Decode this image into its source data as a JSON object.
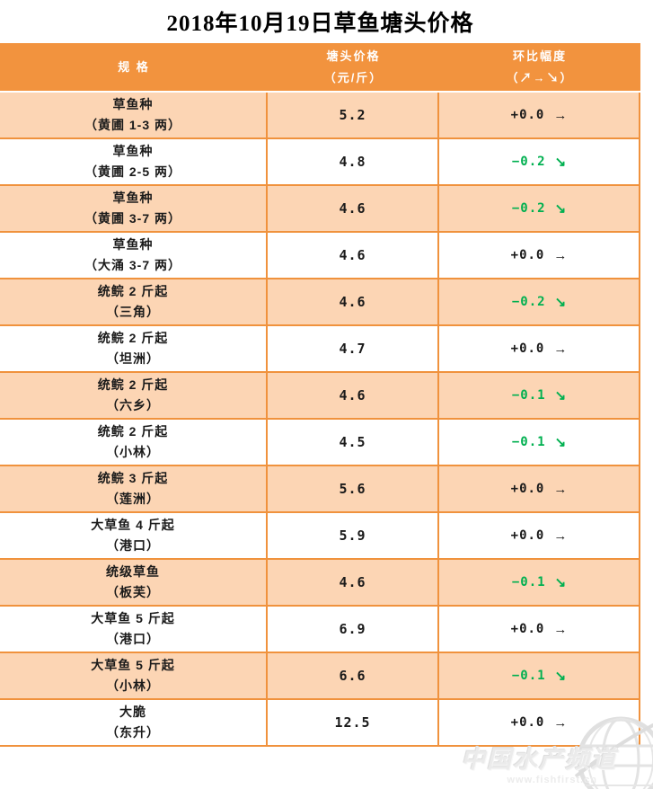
{
  "chart_data": {
    "type": "table",
    "title": "2018年10月19日草鱼塘头价格",
    "columns": [
      {
        "label": "规 格",
        "sub": ""
      },
      {
        "label": "塘头价格",
        "sub": "（元/斤）"
      },
      {
        "label": "环比幅度",
        "sub": "（↗→↘）"
      }
    ],
    "rows": [
      {
        "spec": "草鱼种",
        "detail": "（黄圃 1-3 两）",
        "price": "5.2",
        "change": "+0.0",
        "trend": "→",
        "direction": "flat"
      },
      {
        "spec": "草鱼种",
        "detail": "（黄圃 2-5 两）",
        "price": "4.8",
        "change": "−0.2",
        "trend": "↘",
        "direction": "down"
      },
      {
        "spec": "草鱼种",
        "detail": "（黄圃 3-7 两）",
        "price": "4.6",
        "change": "−0.2",
        "trend": "↘",
        "direction": "down"
      },
      {
        "spec": "草鱼种",
        "detail": "（大涌 3-7 两）",
        "price": "4.6",
        "change": "+0.0",
        "trend": "→",
        "direction": "flat"
      },
      {
        "spec": "统鲩 2 斤起",
        "detail": "（三角）",
        "price": "4.6",
        "change": "−0.2",
        "trend": "↘",
        "direction": "down"
      },
      {
        "spec": "统鲩 2 斤起",
        "detail": "（坦洲）",
        "price": "4.7",
        "change": "+0.0",
        "trend": "→",
        "direction": "flat"
      },
      {
        "spec": "统鲩 2 斤起",
        "detail": "（六乡）",
        "price": "4.6",
        "change": "−0.1",
        "trend": "↘",
        "direction": "down"
      },
      {
        "spec": "统鲩 2 斤起",
        "detail": "（小林）",
        "price": "4.5",
        "change": "−0.1",
        "trend": "↘",
        "direction": "down"
      },
      {
        "spec": "统鲩 3 斤起",
        "detail": "（莲洲）",
        "price": "5.6",
        "change": "+0.0",
        "trend": "→",
        "direction": "flat"
      },
      {
        "spec": "大草鱼 4 斤起",
        "detail": "（港口）",
        "price": "5.9",
        "change": "+0.0",
        "trend": "→",
        "direction": "flat"
      },
      {
        "spec": "统级草鱼",
        "detail": "（板芙）",
        "price": "4.6",
        "change": "−0.1",
        "trend": "↘",
        "direction": "down"
      },
      {
        "spec": "大草鱼 5 斤起",
        "detail": "（港口）",
        "price": "6.9",
        "change": "+0.0",
        "trend": "→",
        "direction": "flat"
      },
      {
        "spec": "大草鱼 5 斤起",
        "detail": "（小林）",
        "price": "6.6",
        "change": "−0.1",
        "trend": "↘",
        "direction": "down"
      },
      {
        "spec": "大脆",
        "detail": "（东升）",
        "price": "12.5",
        "change": "+0.0",
        "trend": "→",
        "direction": "flat"
      }
    ]
  },
  "watermark": {
    "brand": "中国水产频道",
    "url": "www.fishfirst.cn",
    "icon": "globe-icon"
  },
  "colors": {
    "header_bg": "#F2933E",
    "row_alt_bg": "#FCD5B4",
    "border": "#F0923D",
    "down_green": "#00B050",
    "text": "#1A1A1A",
    "watermark_gray": "#EBEBEB"
  }
}
